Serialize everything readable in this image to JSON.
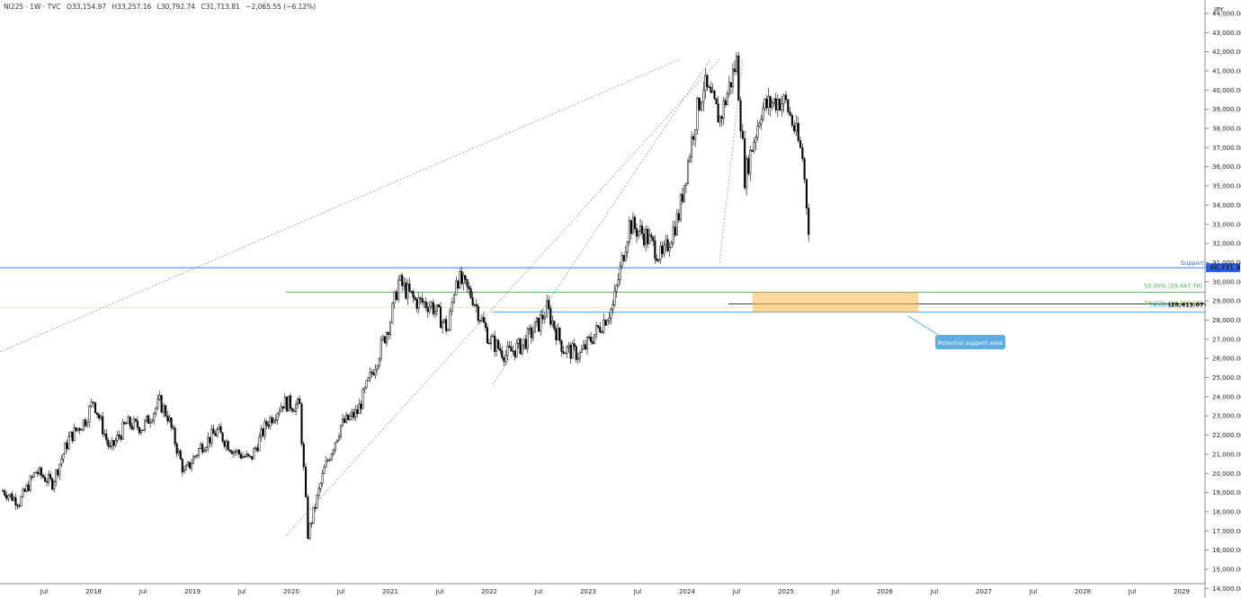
{
  "header": {
    "symbol": "NI225 · 1W · TVC",
    "open": "O33,154.97",
    "high": "H33,257.16",
    "low": "L30,792.74",
    "close": "C31,713.81",
    "change": "−2,065.55 (−6.12%)"
  },
  "currency": "JPY",
  "colors": {
    "support": "#2962ff",
    "fib50": "#4caf50",
    "fib382": "#8bc34a",
    "fib786": "#2196f3",
    "zone": "#ffb74d",
    "callout": "#5dade2",
    "candle": "#000000"
  },
  "annotations": {
    "support_label": "Support",
    "support_price": "30,731.98",
    "fib_50": "50.00% (29,447.76)",
    "fib_382": "38.20% (28,836.83)",
    "fib_786_pct": "78.60%",
    "fib_786_price": "(28,413.07)",
    "callout": "Potential support area"
  },
  "chart_data": {
    "type": "candlestick",
    "title": "",
    "ylim": [
      13500,
      44700
    ],
    "y_ticks": [
      "44,000.00",
      "43,000.00",
      "42,000.00",
      "41,000.00",
      "40,000.00",
      "39,000.00",
      "38,000.00",
      "37,000.00",
      "36,000.00",
      "35,000.00",
      "34,000.00",
      "33,000.00",
      "32,000.00",
      "31,000.00",
      "30,000.00",
      "29,000.00",
      "28,000.00",
      "27,000.00",
      "26,000.00",
      "25,000.00",
      "24,000.00",
      "23,000.00",
      "22,000.00",
      "21,000.00",
      "20,000.00",
      "19,000.00",
      "18,000.00",
      "17,000.00",
      "16,000.00",
      "15,000.00",
      "14,000.00"
    ],
    "x_ticks": [
      "Jul",
      "2018",
      "Jul",
      "2019",
      "Jul",
      "2020",
      "Jul",
      "2021",
      "Jul",
      "2022",
      "Jul",
      "2023",
      "Jul",
      "2024",
      "Jul",
      "2025",
      "Jul",
      "2026",
      "Jul",
      "2027",
      "Jul",
      "2028",
      "Jul",
      "2029"
    ],
    "series": [
      {
        "date": "2017-02",
        "value": 19100
      },
      {
        "date": "2017-04",
        "value": 18500
      },
      {
        "date": "2017-06",
        "value": 20100
      },
      {
        "date": "2017-08",
        "value": 19500
      },
      {
        "date": "2017-10",
        "value": 21800
      },
      {
        "date": "2017-12",
        "value": 22800
      },
      {
        "date": "2018-01",
        "value": 23800
      },
      {
        "date": "2018-03",
        "value": 21200
      },
      {
        "date": "2018-05",
        "value": 22600
      },
      {
        "date": "2018-07",
        "value": 22400
      },
      {
        "date": "2018-09",
        "value": 23700
      },
      {
        "date": "2018-10",
        "value": 23000
      },
      {
        "date": "2018-12",
        "value": 20000
      },
      {
        "date": "2019-02",
        "value": 21400
      },
      {
        "date": "2019-04",
        "value": 22200
      },
      {
        "date": "2019-06",
        "value": 21200
      },
      {
        "date": "2019-08",
        "value": 20700
      },
      {
        "date": "2019-10",
        "value": 22600
      },
      {
        "date": "2019-12",
        "value": 23700
      },
      {
        "date": "2020-02",
        "value": 23500
      },
      {
        "date": "2020-03",
        "value": 16800
      },
      {
        "date": "2020-05",
        "value": 20200
      },
      {
        "date": "2020-07",
        "value": 22500
      },
      {
        "date": "2020-09",
        "value": 23200
      },
      {
        "date": "2020-11",
        "value": 25500
      },
      {
        "date": "2021-01",
        "value": 28000
      },
      {
        "date": "2021-02",
        "value": 30000
      },
      {
        "date": "2021-04",
        "value": 29000
      },
      {
        "date": "2021-06",
        "value": 28800
      },
      {
        "date": "2021-08",
        "value": 27500
      },
      {
        "date": "2021-09",
        "value": 30300
      },
      {
        "date": "2021-11",
        "value": 29200
      },
      {
        "date": "2022-01",
        "value": 27000
      },
      {
        "date": "2022-03",
        "value": 26200
      },
      {
        "date": "2022-05",
        "value": 26700
      },
      {
        "date": "2022-07",
        "value": 27800
      },
      {
        "date": "2022-08",
        "value": 28600
      },
      {
        "date": "2022-10",
        "value": 26500
      },
      {
        "date": "2022-12",
        "value": 26200
      },
      {
        "date": "2023-02",
        "value": 27400
      },
      {
        "date": "2023-04",
        "value": 28700
      },
      {
        "date": "2023-06",
        "value": 33000
      },
      {
        "date": "2023-08",
        "value": 32400
      },
      {
        "date": "2023-10",
        "value": 31200
      },
      {
        "date": "2023-12",
        "value": 33500
      },
      {
        "date": "2024-02",
        "value": 38500
      },
      {
        "date": "2024-03",
        "value": 40300
      },
      {
        "date": "2024-05",
        "value": 38500
      },
      {
        "date": "2024-07",
        "value": 41500
      },
      {
        "date": "2024-08",
        "value": 35500
      },
      {
        "date": "2024-10",
        "value": 39000
      },
      {
        "date": "2024-12",
        "value": 39500
      },
      {
        "date": "2025-01",
        "value": 39300
      },
      {
        "date": "2025-02",
        "value": 38000
      },
      {
        "date": "2025-03",
        "value": 36500
      },
      {
        "date": "2025-04",
        "value": 31700
      }
    ],
    "levels": [
      {
        "name": "Support",
        "value": 30731.98
      },
      {
        "name": "50.00%",
        "value": 29447.76
      },
      {
        "name": "38.20%",
        "value": 28836.83
      },
      {
        "name": "78.60%",
        "value": 28413.07
      }
    ],
    "zone": {
      "from": "2024-09",
      "to": "2026-05",
      "low": 28413.07,
      "high": 29447.76
    }
  }
}
